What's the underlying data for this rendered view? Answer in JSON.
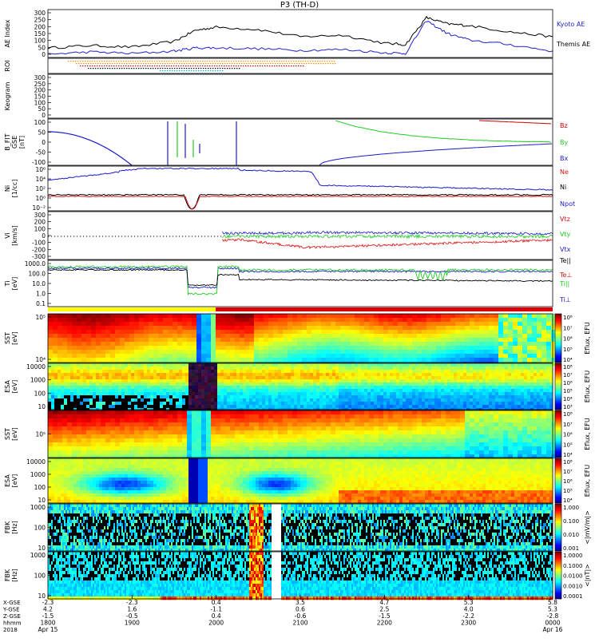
{
  "title": "P3 (TH-D)",
  "colors": {
    "kyoto": "#2222cc",
    "themis": "#000000",
    "bz": "#cc0000",
    "by": "#22cc22",
    "bx": "#1a1acc",
    "ne": "#dd1111",
    "ni": "#000000",
    "npot": "#1a1acc",
    "vtz": "#dd1111",
    "vty": "#22cc22",
    "vtx": "#1a1acc",
    "teii": "#000000",
    "teperp": "#dd1111",
    "tii": "#22cc22",
    "tiperp": "#1a1acc"
  },
  "roi_dots": [
    "#ff8800",
    "#aa0000",
    "#000000",
    "#00aacc"
  ],
  "panels": {
    "ae": {
      "label": "AE Index",
      "ticks": [
        "300",
        "250",
        "200",
        "150",
        "100",
        "50",
        "0"
      ],
      "legend": [
        "Kyoto AE",
        "Themis AE"
      ]
    },
    "roi": {
      "label": "ROI"
    },
    "keogram": {
      "label": "Keogram",
      "ticks": [
        "300",
        "250",
        "200",
        "150",
        "100",
        "50",
        "0"
      ]
    },
    "bfit": {
      "label": [
        "B_FIT",
        "GSE",
        "[nT]"
      ],
      "ticks": [
        "100",
        "50",
        "0",
        "-50",
        "-100"
      ],
      "legend": [
        "Bz",
        "By",
        "Bx"
      ]
    },
    "ni": {
      "label": [
        "Ni",
        "[1/cc]"
      ],
      "ticks": [
        "10⁶",
        "10⁴",
        "10²",
        "10⁰",
        "10⁻²"
      ],
      "legend": [
        "Ne",
        "Ni",
        "Npot"
      ]
    },
    "vi": {
      "label": [
        "Vi",
        "[km/s]"
      ],
      "ticks": [
        "300",
        "200",
        "100",
        "0",
        "-100",
        "-200",
        "-300"
      ],
      "legend": [
        "Vtz",
        "Vty",
        "Vtx"
      ]
    },
    "ti": {
      "label": [
        "Ti",
        "[eV]"
      ],
      "ticks": [
        "1000.0",
        "100.0",
        "10.0",
        "1.0",
        "0.1"
      ],
      "legend": [
        "Te||",
        "Te⊥",
        "Ti||",
        "Ti⊥"
      ]
    },
    "sst1": {
      "label": [
        "SST",
        "[eV]"
      ],
      "ticks": [
        "10⁵",
        "10⁴"
      ]
    },
    "esa1": {
      "label": [
        "ESA",
        "[eV]"
      ],
      "ticks": [
        "10000",
        "1000",
        "100",
        "10"
      ]
    },
    "sst2": {
      "label": [
        "SST",
        "[eV]"
      ],
      "ticks": [
        "10⁵"
      ]
    },
    "esa2": {
      "label": [
        "ESA",
        "[eV]"
      ],
      "ticks": [
        "10000",
        "1000",
        "100",
        "10"
      ]
    },
    "fbk1": {
      "label": [
        "FBK",
        "[Hz]"
      ],
      "ticks": [
        "1000",
        "100",
        "10"
      ]
    },
    "fbk2": {
      "label": [
        "FBK",
        "[Hz]"
      ],
      "ticks": [
        "1000",
        "100",
        "10"
      ]
    }
  },
  "colorbar_ticks": {
    "sst1": [
      "10⁸",
      "10⁷",
      "10⁶",
      "10⁵",
      "10⁴"
    ],
    "esa1": [
      "10⁸",
      "10⁷",
      "10⁶",
      "10⁵",
      "10⁴",
      "10³"
    ],
    "sst2": [
      "10⁸",
      "10⁷",
      "10⁶",
      "10⁵",
      "10⁴"
    ],
    "esa2": [
      "10⁸",
      "10⁷",
      "10⁶",
      "10⁵",
      "10⁴"
    ],
    "fbk1": [
      "1.000",
      "0.100",
      "0.010",
      "0.001"
    ],
    "fbk2": [
      "1.0000",
      "0.1000",
      "0.0100",
      "0.0010",
      "0.0001"
    ]
  },
  "colorbar_units": {
    "sst1": "Eflux, EFU",
    "esa1": "Eflux, EFU",
    "sst2": "Eflux, EFU",
    "esa2": "Eflux, EFU",
    "fbk1": "<|mV/m|>",
    "fbk2": "<|nT|>"
  },
  "xaxis": {
    "row_labels": [
      "X-GSE",
      "Y-GSE",
      "Z-GSE",
      "hhmm",
      "2018"
    ],
    "columns": [
      {
        "vals": [
          "-2.3",
          "4.2",
          "-1.5",
          "1800",
          "Apr 15"
        ]
      },
      {
        "vals": [
          "-2.3",
          "1.6",
          "-0.5",
          "1900",
          ""
        ]
      },
      {
        "vals": [
          "0.4",
          "-1.1",
          "0.4",
          "2000",
          ""
        ]
      },
      {
        "vals": [
          "3.5",
          "0.6",
          "-0.6",
          "2100",
          ""
        ]
      },
      {
        "vals": [
          "4.7",
          "2.5",
          "-1.5",
          "2200",
          ""
        ]
      },
      {
        "vals": [
          "5.3",
          "4.0",
          "-2.2",
          "2300",
          ""
        ]
      },
      {
        "vals": [
          "5.8",
          "5.3",
          "-2.8",
          "0000",
          "Apr 16"
        ]
      }
    ]
  },
  "chart_data": {
    "type": "line",
    "title": "P3 (TH-D)",
    "x_ticks": [
      "1800",
      "1900",
      "2000",
      "2100",
      "2200",
      "2300",
      "0000"
    ],
    "series": [
      {
        "name": "Themis AE",
        "x": [
          1800,
          1830,
          1900,
          1930,
          1945,
          2000,
          2030,
          2100,
          2130,
          2200,
          2215,
          2230,
          2245,
          2300,
          2330,
          0
        ],
        "values": [
          60,
          75,
          65,
          100,
          170,
          190,
          175,
          130,
          140,
          90,
          80,
          250,
          210,
          200,
          160,
          130
        ]
      },
      {
        "name": "Kyoto AE",
        "x": [
          1800,
          1830,
          1900,
          1930,
          1945,
          2000,
          2030,
          2100,
          2130,
          2200,
          2215,
          2230,
          2245,
          2300,
          2330,
          0
        ],
        "values": [
          20,
          35,
          25,
          40,
          60,
          60,
          55,
          45,
          50,
          30,
          25,
          230,
          150,
          110,
          80,
          40
        ]
      }
    ],
    "ylim": [
      0,
      300
    ]
  }
}
